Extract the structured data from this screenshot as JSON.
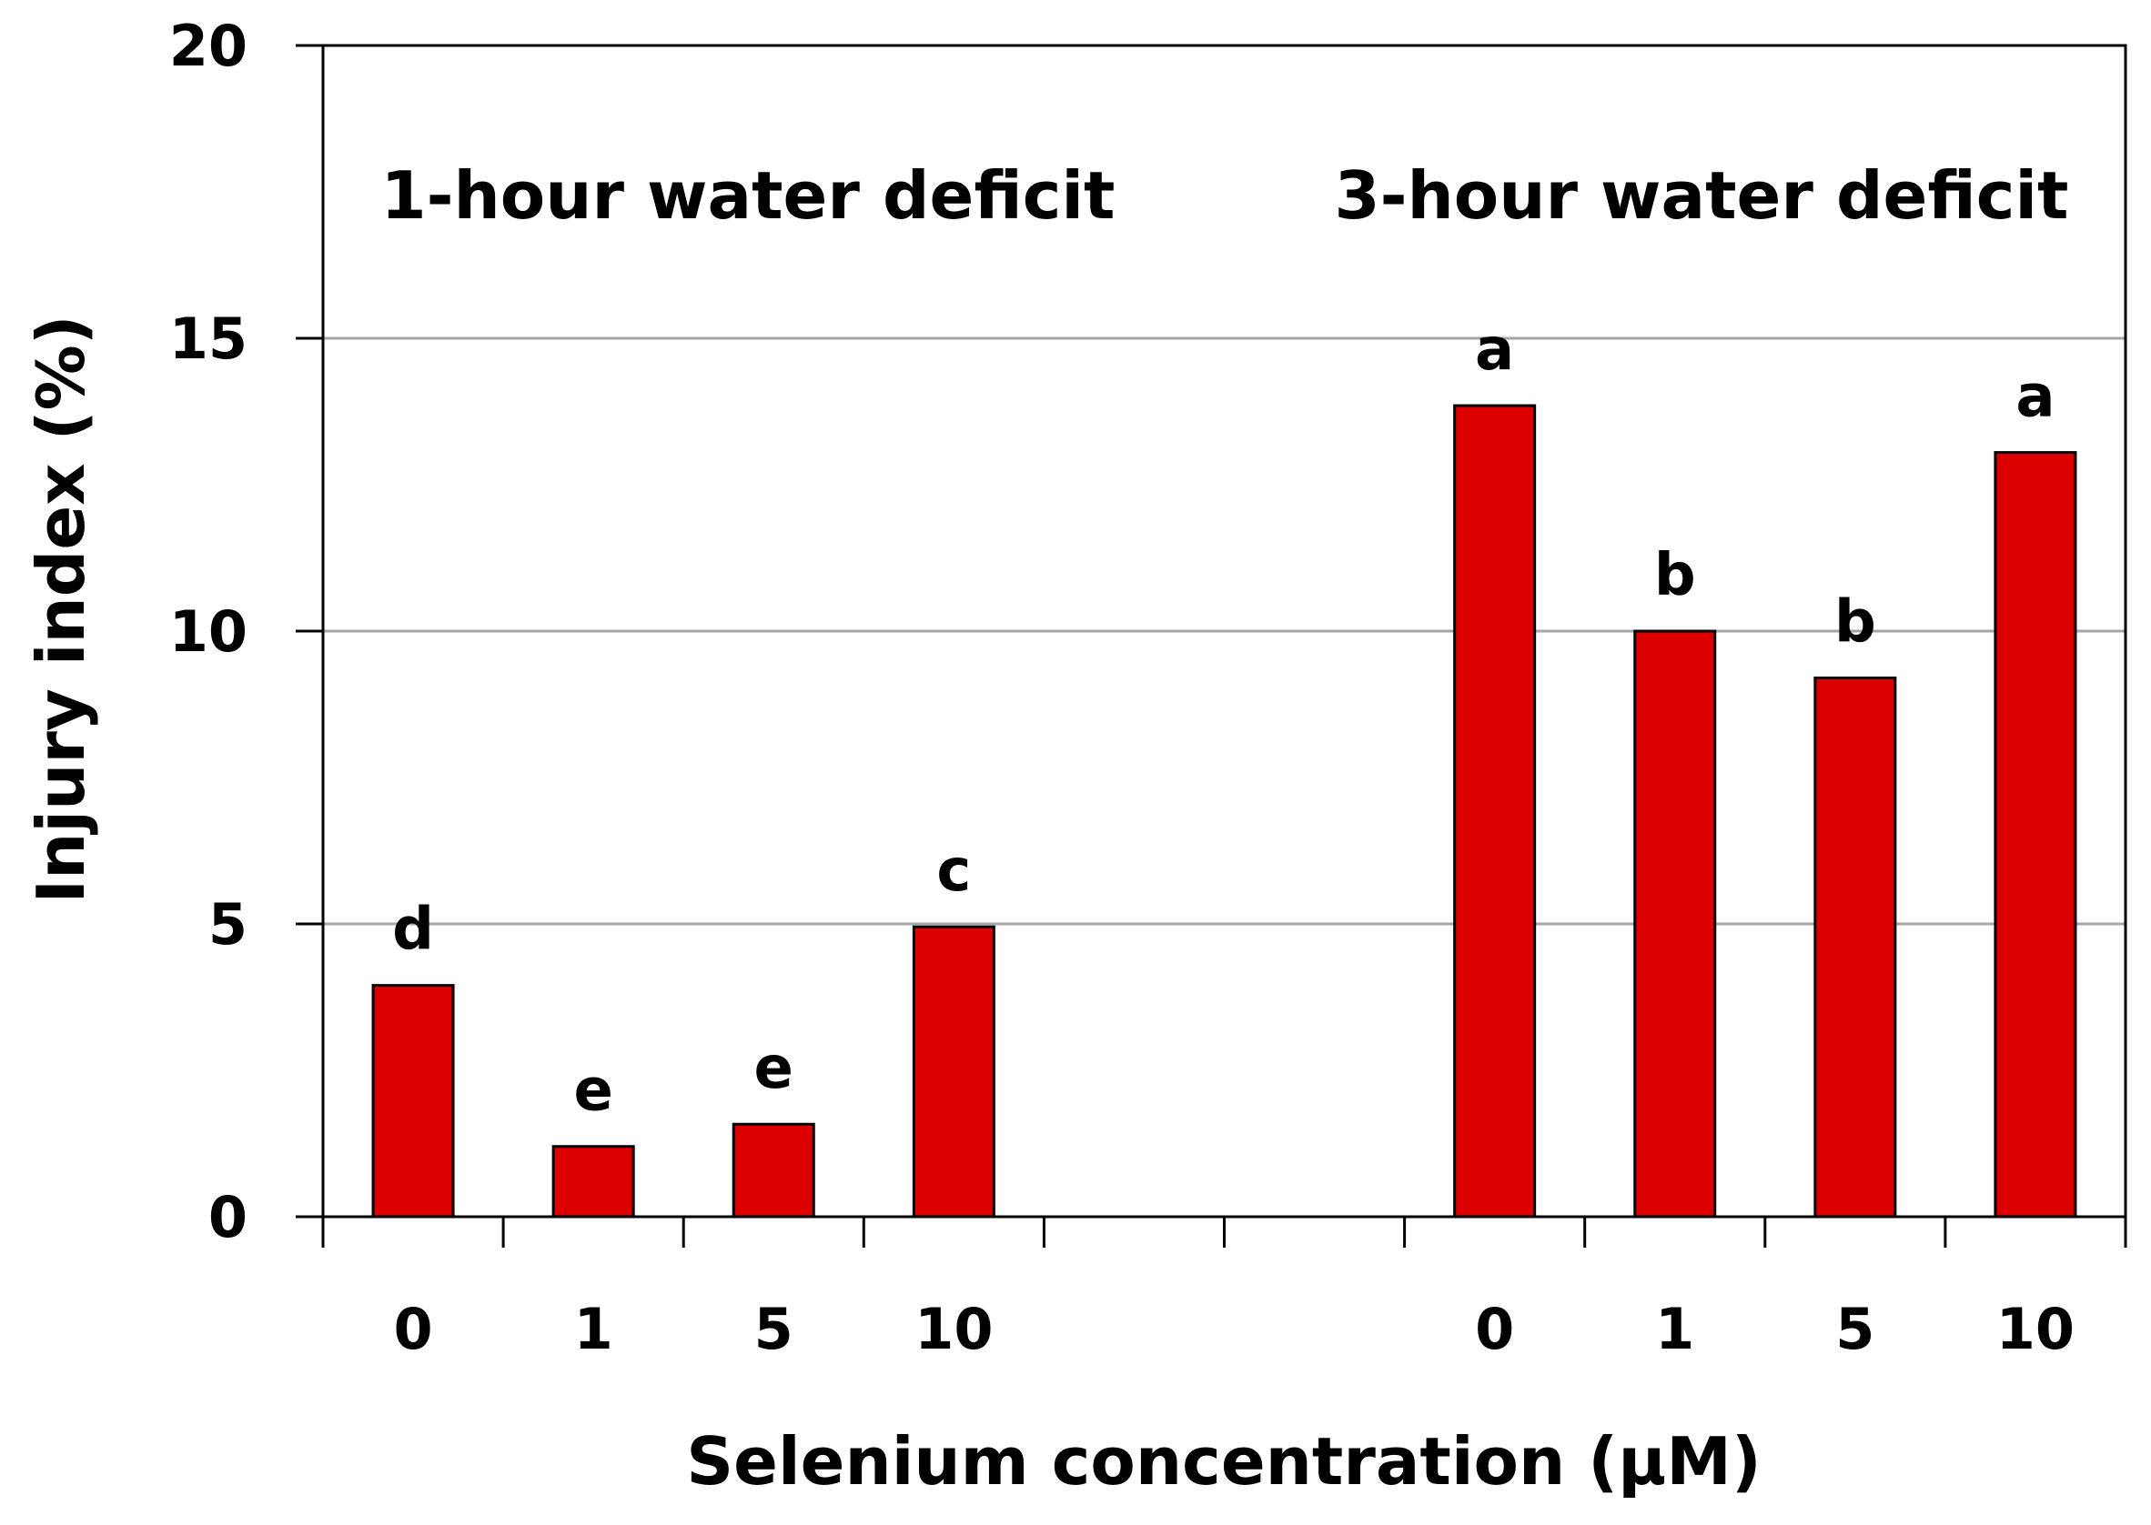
{
  "chart_data": {
    "type": "bar",
    "xlabel": "Selenium concentration (µM)",
    "ylabel": "Injury index (%)",
    "ylim": [
      0,
      20
    ],
    "yticks": [
      "0",
      "5",
      "10",
      "15",
      "20"
    ],
    "grid": "horizontal",
    "bar_color": "#dd0000",
    "groups": [
      {
        "label": "1-hour water deficit",
        "categories": [
          "0",
          "1",
          "5",
          "10"
        ],
        "values": [
          3.95,
          1.2,
          1.58,
          4.95
        ],
        "significance": [
          "d",
          "e",
          "e",
          "c"
        ]
      },
      {
        "label": "3-hour water deficit",
        "categories": [
          "0",
          "1",
          "5",
          "10"
        ],
        "values": [
          13.85,
          10.0,
          9.2,
          13.05
        ],
        "significance": [
          "a",
          "b",
          "b",
          "a"
        ]
      }
    ]
  }
}
